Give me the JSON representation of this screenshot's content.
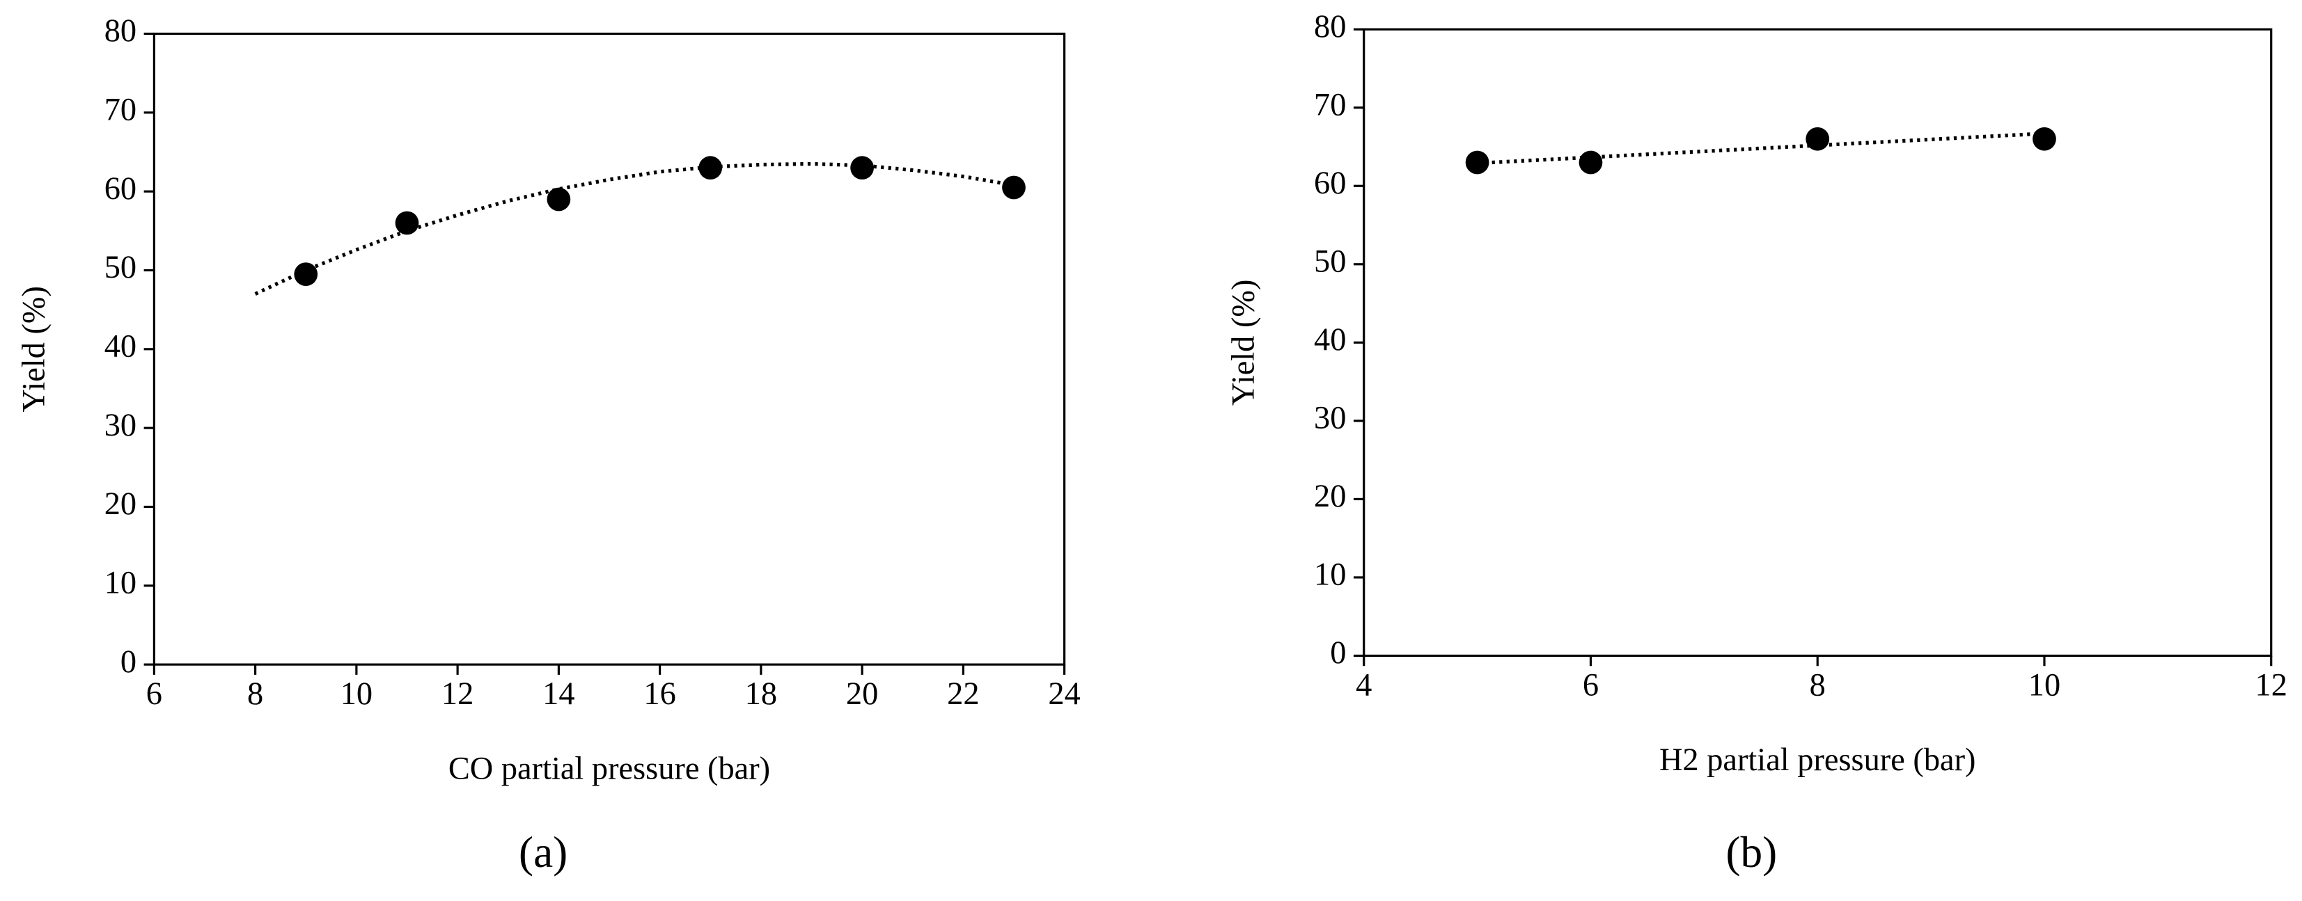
{
  "chart_data": [
    {
      "type": "scatter",
      "panel_label": "(a)",
      "x_label": "CO partial pressure (bar)",
      "y_label": "Yield (%)",
      "xlim": [
        6,
        24
      ],
      "xticks": [
        6,
        8,
        10,
        12,
        14,
        16,
        18,
        20,
        22,
        24
      ],
      "ylim": [
        0,
        80
      ],
      "yticks": [
        0,
        10,
        20,
        30,
        40,
        50,
        60,
        70,
        80
      ],
      "series": [
        {
          "color": "#000000",
          "x": [
            9,
            11,
            14,
            17,
            20,
            23
          ],
          "values": [
            49.5,
            56,
            59,
            63,
            63,
            60.5
          ]
        }
      ],
      "trendline": {
        "style": "dotted",
        "color": "#000000",
        "x": [
          8,
          9,
          10,
          11,
          12,
          13,
          14,
          15,
          16,
          17,
          18,
          19,
          20,
          21,
          22,
          23
        ],
        "values": [
          47,
          50,
          52.6,
          55,
          57,
          58.8,
          60.3,
          61.5,
          62.5,
          63.1,
          63.4,
          63.5,
          63.3,
          62.7,
          61.9,
          60.8
        ]
      }
    },
    {
      "type": "scatter",
      "panel_label": "(b)",
      "x_label": "H2 partial pressure (bar)",
      "y_label": "Yield (%)",
      "xlim": [
        4,
        12
      ],
      "xticks": [
        4,
        6,
        8,
        10,
        12
      ],
      "ylim": [
        0,
        80
      ],
      "yticks": [
        0,
        10,
        20,
        30,
        40,
        50,
        60,
        70,
        80
      ],
      "series": [
        {
          "color": "#000000",
          "x": [
            5,
            6,
            8,
            10
          ],
          "values": [
            63,
            63,
            66,
            66
          ]
        }
      ],
      "trendline": {
        "style": "dotted",
        "color": "#000000",
        "x": [
          5,
          10
        ],
        "values": [
          62.9,
          66.7
        ]
      }
    }
  ]
}
